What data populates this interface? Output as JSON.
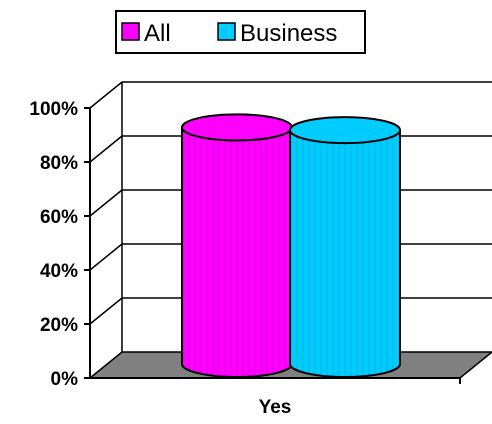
{
  "chart_data": {
    "type": "bar",
    "categories": [
      "Yes"
    ],
    "series": [
      {
        "name": "All",
        "values": [
          88
        ],
        "color": "#ff00ff"
      },
      {
        "name": "Business",
        "values": [
          87
        ],
        "color": "#00ccff"
      }
    ],
    "title": "",
    "xlabel": "",
    "ylabel": "",
    "ylim": [
      0,
      100
    ],
    "y_ticks": [
      "0%",
      "20%",
      "40%",
      "60%",
      "80%",
      "100%"
    ],
    "grid": true,
    "legend_position": "top-center",
    "bar_shape": "cylinder-3d",
    "floor_color": "#808080"
  }
}
